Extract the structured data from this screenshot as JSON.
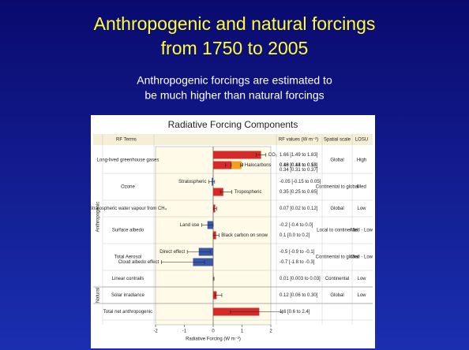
{
  "slide": {
    "title": [
      "Anthropogenic and natural forcings",
      "from 1750 to 2005"
    ],
    "subtitle": [
      "Anthropogenic forcings are estimated to",
      "be much higher than natural forcings"
    ]
  },
  "chart_data": {
    "type": "bar",
    "orientation": "horizontal",
    "title": "Radiative Forcing Components",
    "headers": [
      "RF Terms",
      "RF values (W m⁻²)",
      "Spatial scale",
      "LOSU"
    ],
    "x_label": "Radiative Forcing (W m⁻²)",
    "xlim": [
      -2,
      2
    ],
    "xticks": [
      -2,
      -1,
      0,
      1,
      2
    ],
    "rows": [
      {
        "group": "Anthropogenic",
        "term": "Long-lived greenhouse gases",
        "scale": "Global",
        "losu": "High",
        "lines": [
          [
            {
              "name": "CO₂",
              "color": "#d42a2a",
              "value": 1.66,
              "low": 1.49,
              "high": 1.83,
              "value_label": "1.66 [1.49 to 1.83]"
            }
          ],
          [
            {
              "name": "CH₄",
              "color": "#d42a2a",
              "value": 0.48,
              "low": 0.43,
              "high": 0.53,
              "value_label": "0.48 [0.43 to 0.53]"
            },
            {
              "name": "N₂O",
              "color": "#d42a2a",
              "stack": true,
              "value": 0.16,
              "low": 0.14,
              "high": 0.18,
              "value_label": "0.16 [0.14 to 0.18]"
            },
            {
              "name": "Halocarbons",
              "color": "#f0a020",
              "stack": true,
              "value": 0.34,
              "low": 0.31,
              "high": 0.37,
              "value_label": "0.34 [0.31 to 0.37]"
            }
          ]
        ]
      },
      {
        "term": "Ozone",
        "scale": "Continental to global",
        "losu": "Med",
        "lines": [
          [
            {
              "name": "Stratospheric",
              "color": "#3a56a8",
              "value": -0.05,
              "low": -0.15,
              "high": 0.05,
              "value_label": "-0.05 [-0.15 to 0.05]"
            }
          ],
          [
            {
              "name": "Tropospheric",
              "color": "#d42a2a",
              "value": 0.35,
              "low": 0.25,
              "high": 0.65,
              "value_label": "0.35 [0.25 to 0.65]"
            }
          ]
        ]
      },
      {
        "term": "Stratospheric water vapour from CH₄",
        "scale": "Global",
        "losu": "Low",
        "lines": [
          [
            {
              "color": "#d42a2a",
              "value": 0.07,
              "low": 0.02,
              "high": 0.12,
              "value_label": "0.07 [0.02 to 0.12]"
            }
          ]
        ]
      },
      {
        "term": "Surface albedo",
        "scale": "Local to continental",
        "losu": "Med - Low",
        "lines": [
          [
            {
              "name": "Land use",
              "color": "#3a56a8",
              "value": -0.2,
              "low": -0.4,
              "high": 0.0,
              "value_label": "-0.2 [-0.4 to 0.0]"
            }
          ],
          [
            {
              "name": "Black carbon on snow",
              "color": "#d42a2a",
              "value": 0.1,
              "low": 0.0,
              "high": 0.2,
              "value_label": "0.1 [0.0 to 0.2]"
            }
          ]
        ]
      },
      {
        "term": "Total Aerosol",
        "scale": "Continental to global",
        "losu": "Med - Low",
        "lines": [
          [
            {
              "name": "Direct effect",
              "color": "#3a56a8",
              "value": -0.5,
              "low": -0.9,
              "high": -0.1,
              "value_label": "-0.5 [-0.9 to -0.1]"
            }
          ],
          [
            {
              "name": "Cloud albedo effect",
              "color": "#3a56a8",
              "value": -0.7,
              "low": -1.8,
              "high": -0.3,
              "value_label": "-0.7 [-1.8 to -0.3]"
            }
          ]
        ]
      },
      {
        "term": "Linear contrails",
        "scale": "Continental",
        "losu": "Low",
        "lines": [
          [
            {
              "color": "#d42a2a",
              "value": 0.01,
              "low": 0.003,
              "high": 0.03,
              "value_label": "0.01 [0.003 to 0.03]"
            }
          ]
        ]
      },
      {
        "group": "Natural",
        "term": "Solar irradiance",
        "scale": "Global",
        "losu": "Low",
        "lines": [
          [
            {
              "color": "#d42a2a",
              "value": 0.12,
              "low": 0.06,
              "high": 0.3,
              "value_label": "0.12 [0.06 to 0.30]"
            }
          ]
        ]
      },
      {
        "term": "Total net anthropogenic",
        "lines": [
          [
            {
              "color": "#d42a2a",
              "value": 1.6,
              "low": 0.6,
              "high": 2.4,
              "value_label": "1.6 [0.6 to 2.4]"
            }
          ]
        ]
      }
    ]
  }
}
